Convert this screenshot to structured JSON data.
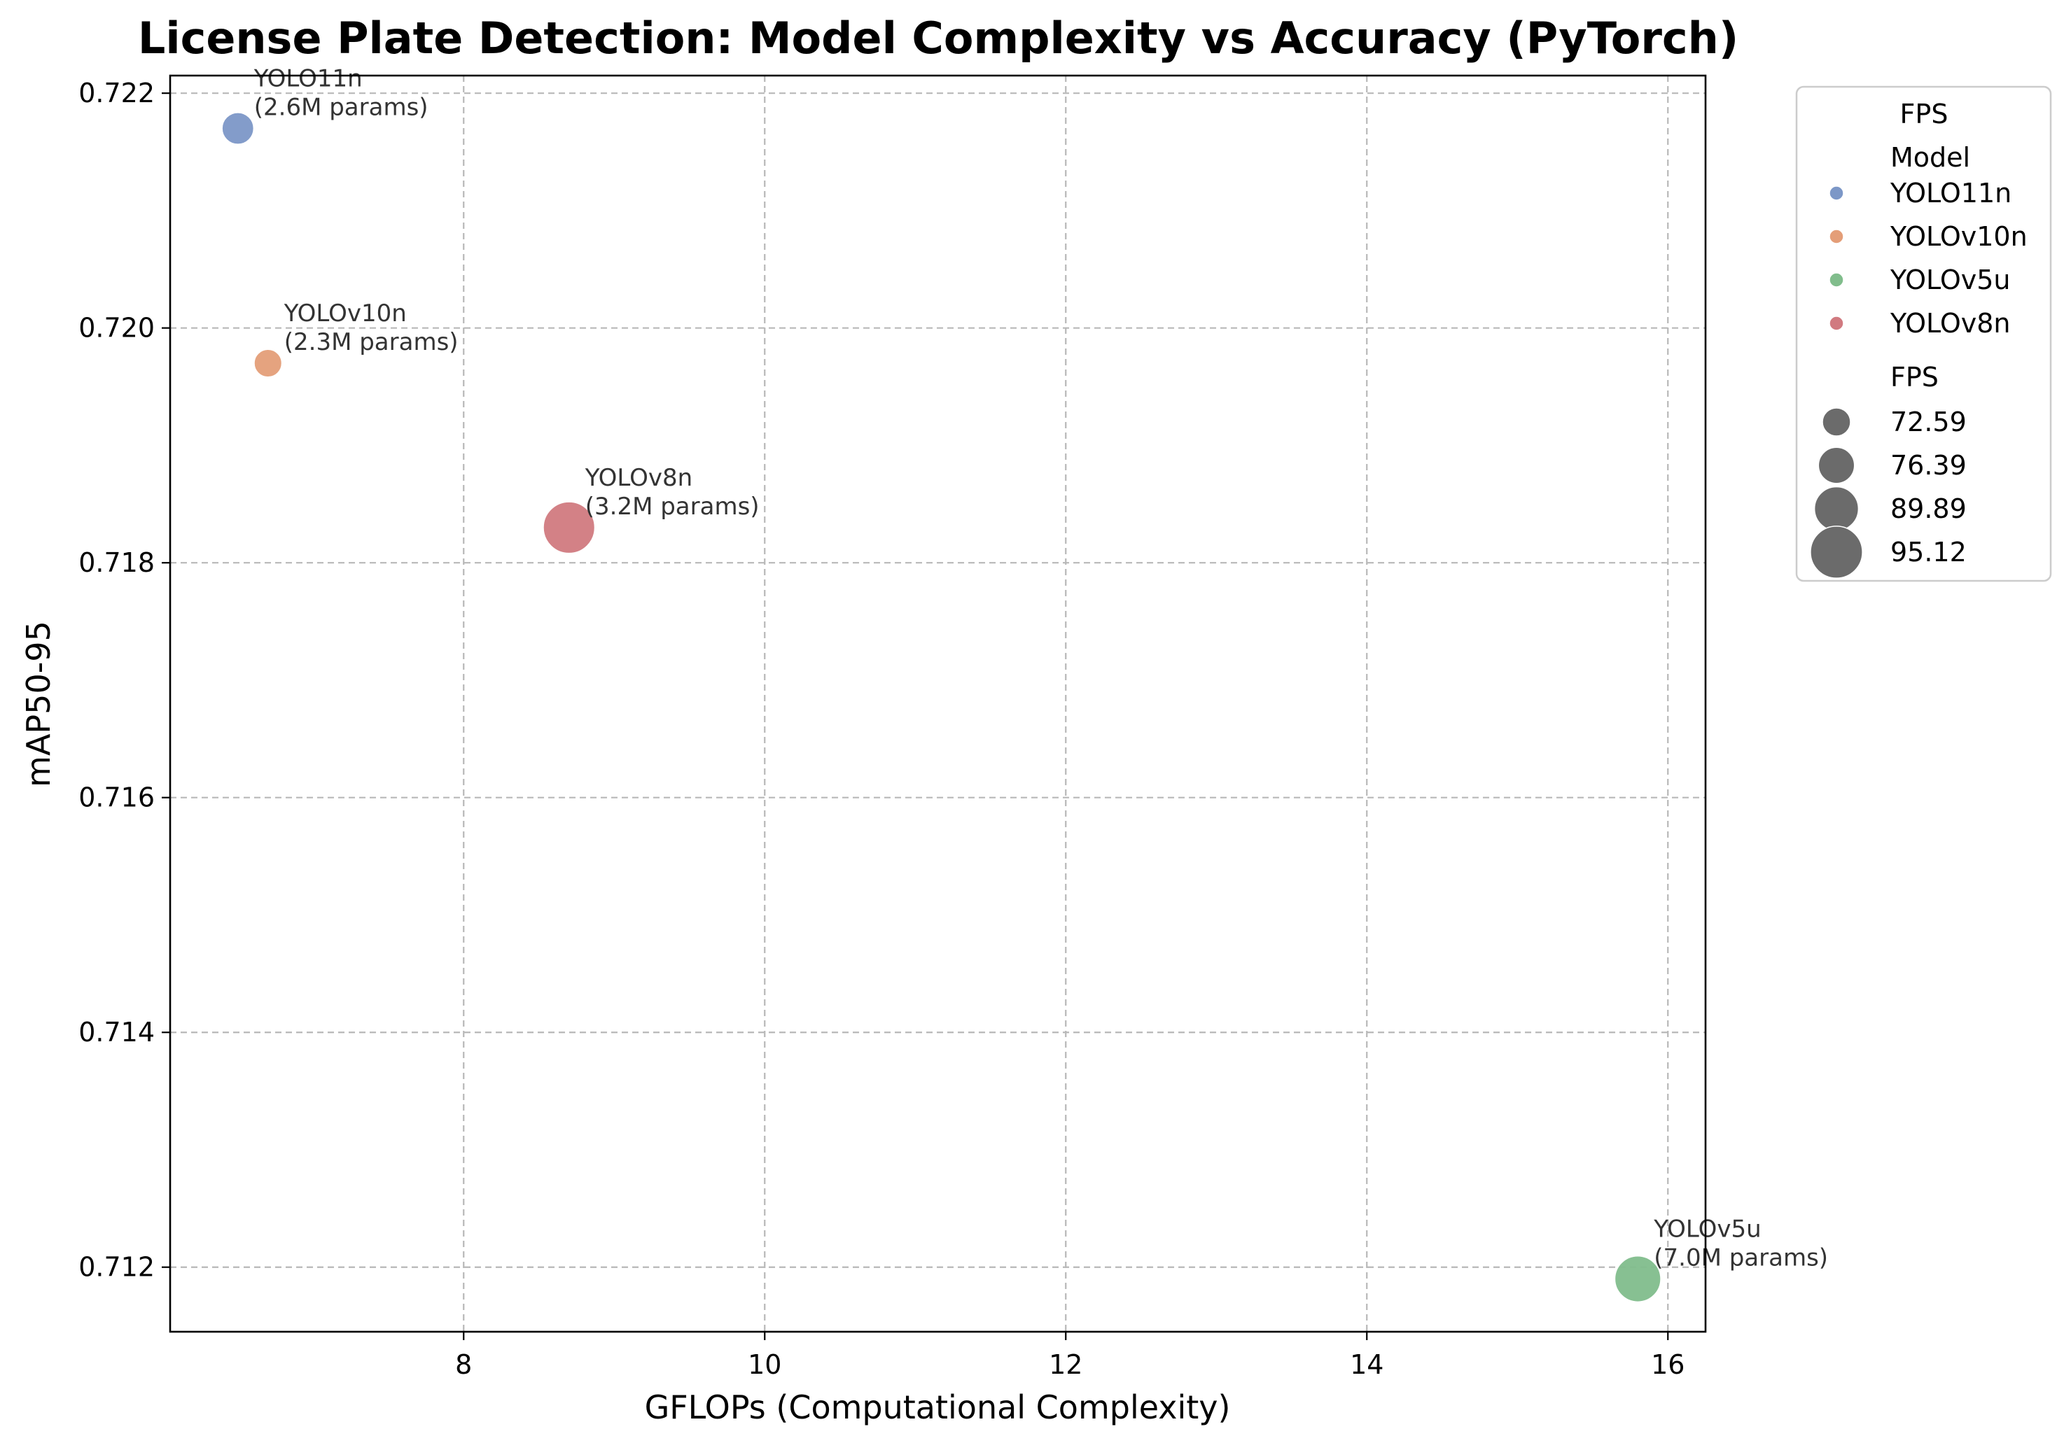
{
  "chart_data": {
    "type": "scatter",
    "title": "License Plate Detection: Model Complexity vs Accuracy (PyTorch)",
    "xlabel": "GFLOPs (Computational Complexity)",
    "ylabel": "mAP50-95",
    "xlim": [
      6.05,
      16.25
    ],
    "ylim": [
      0.71145,
      0.72215
    ],
    "xticks": [
      8,
      10,
      12,
      14,
      16
    ],
    "xtick_labels": [
      "8",
      "10",
      "12",
      "14",
      "16"
    ],
    "yticks": [
      0.712,
      0.714,
      0.716,
      0.718,
      0.72,
      0.722
    ],
    "ytick_labels": [
      "0.712",
      "0.714",
      "0.716",
      "0.718",
      "0.720",
      "0.722"
    ],
    "grid": true,
    "legend_placement": "outside upper right",
    "series": [
      {
        "name": "YOLO11n",
        "x": 6.5,
        "y": 0.7217,
        "fps": 76.39,
        "params_label": "(2.6M params)",
        "color": "#7c97c7"
      },
      {
        "name": "YOLOv10n",
        "x": 6.7,
        "y": 0.7197,
        "fps": 72.59,
        "params_label": "(2.3M params)",
        "color": "#e49e78"
      },
      {
        "name": "YOLOv8n",
        "x": 8.7,
        "y": 0.7183,
        "fps": 95.12,
        "params_label": "(3.2M params)",
        "color": "#d17a80"
      },
      {
        "name": "YOLOv5u",
        "x": 15.8,
        "y": 0.7119,
        "fps": 89.89,
        "params_label": "(7.0M params)",
        "color": "#81bd8c"
      }
    ],
    "legend": {
      "title": "FPS",
      "hue_title": "Model",
      "hue_entries": [
        "YOLO11n",
        "YOLOv10n",
        "YOLOv5u",
        "YOLOv8n"
      ],
      "size_title": "FPS",
      "size_entries": [
        "72.59",
        "76.39",
        "89.89",
        "95.12"
      ],
      "size_values": [
        72.59,
        76.39,
        89.89,
        95.12
      ],
      "size_color": "#6b6b6b"
    }
  }
}
